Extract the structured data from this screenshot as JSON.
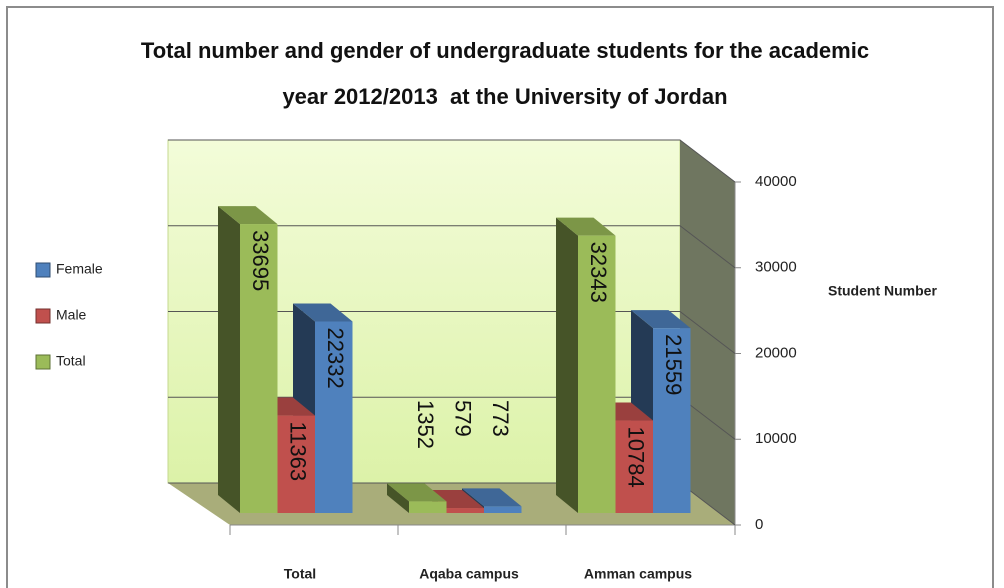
{
  "chart_data": {
    "type": "bar3d",
    "title": "Total number and gender of undergraduate students for the academic year 2012/2013  at the University of Jordan",
    "categories": [
      "Total",
      "Aqaba campus",
      "Amman campus"
    ],
    "series": [
      {
        "name": "Total",
        "color": "#9bbb59",
        "values": [
          33695,
          1352,
          32343
        ]
      },
      {
        "name": "Male",
        "color": "#c0504d",
        "values": [
          11363,
          579,
          10784
        ]
      },
      {
        "name": "Female",
        "color": "#4f81bd",
        "values": [
          22332,
          773,
          21559
        ]
      }
    ],
    "ylabel": "Student Number",
    "ylim": [
      0,
      40000
    ],
    "yticks": [
      0,
      10000,
      20000,
      30000,
      40000
    ],
    "grid": true,
    "legend": "left"
  }
}
